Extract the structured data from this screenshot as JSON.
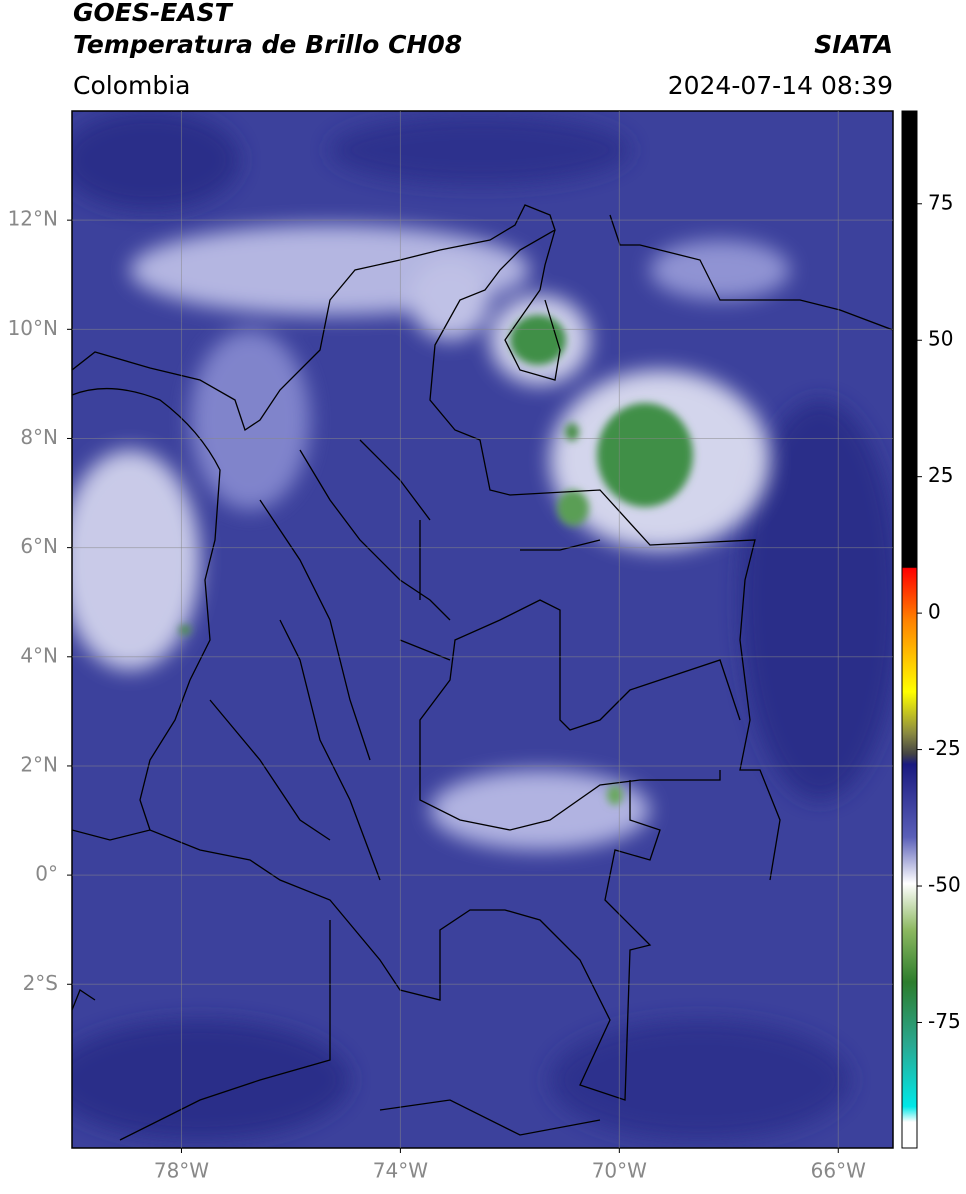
{
  "header": {
    "title": "GOES-EAST",
    "subtitle": "Temperatura de Brillo CH08",
    "source": "SIATA",
    "region": "Colombia",
    "datetime": "2024-07-14 08:39"
  },
  "map": {
    "xlim": [
      -80,
      -65
    ],
    "ylim": [
      -5,
      14
    ],
    "xticks": [
      {
        "value": -78,
        "label": "78°W"
      },
      {
        "value": -74,
        "label": "74°W"
      },
      {
        "value": -70,
        "label": "70°W"
      },
      {
        "value": -66,
        "label": "66°W"
      }
    ],
    "yticks": [
      {
        "value": 12,
        "label": "12°N"
      },
      {
        "value": 10,
        "label": "10°N"
      },
      {
        "value": 8,
        "label": "8°N"
      },
      {
        "value": 6,
        "label": "6°N"
      },
      {
        "value": 4,
        "label": "4°N"
      },
      {
        "value": 2,
        "label": "2°N"
      },
      {
        "value": 0,
        "label": "0°"
      },
      {
        "value": -2,
        "label": "2°S"
      }
    ]
  },
  "colorbar": {
    "lim": [
      -98,
      92
    ],
    "ticks": [
      75,
      50,
      25,
      0,
      -25,
      -50,
      -75
    ]
  }
}
